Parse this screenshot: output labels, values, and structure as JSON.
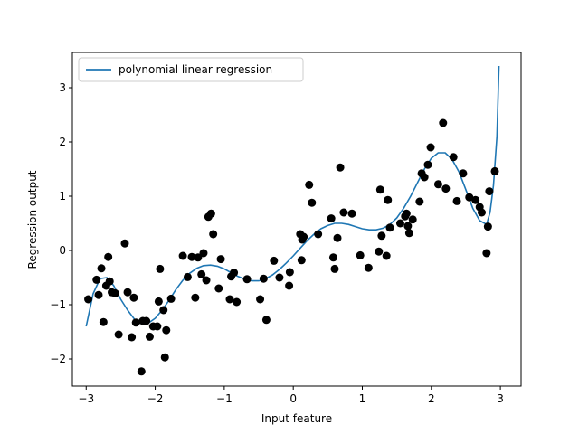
{
  "chart_data": {
    "type": "scatter",
    "xlabel": "Input feature",
    "ylabel": "Regression output",
    "xlim": [
      -3.2,
      3.3
    ],
    "ylim": [
      -2.5,
      3.65
    ],
    "x_ticks": [
      -3,
      -2,
      -1,
      0,
      1,
      2,
      3
    ],
    "y_ticks": [
      -2,
      -1,
      0,
      1,
      2,
      3
    ],
    "x_tick_labels": [
      "−3",
      "−2",
      "−1",
      "0",
      "1",
      "2",
      "3"
    ],
    "y_tick_labels": [
      "−2",
      "−1",
      "0",
      "1",
      "2",
      "3"
    ],
    "legend": {
      "placement": "top-left",
      "entries": [
        "polynomial linear regression"
      ]
    },
    "grid": false,
    "series": [
      {
        "name": "polynomial linear regression",
        "kind": "line",
        "color": "#1f77b4",
        "x": [
          -3.0,
          -2.9,
          -2.8,
          -2.7,
          -2.6,
          -2.5,
          -2.4,
          -2.3,
          -2.2,
          -2.1,
          -2.0,
          -1.9,
          -1.8,
          -1.7,
          -1.6,
          -1.5,
          -1.4,
          -1.3,
          -1.2,
          -1.1,
          -1.0,
          -0.9,
          -0.8,
          -0.7,
          -0.6,
          -0.5,
          -0.4,
          -0.3,
          -0.2,
          -0.1,
          0.0,
          0.1,
          0.2,
          0.3,
          0.4,
          0.5,
          0.6,
          0.7,
          0.8,
          0.9,
          1.0,
          1.1,
          1.2,
          1.3,
          1.4,
          1.5,
          1.6,
          1.7,
          1.8,
          1.9,
          2.0,
          2.1,
          2.2,
          2.3,
          2.4,
          2.5,
          2.6,
          2.7,
          2.8,
          2.85,
          2.9,
          2.95,
          2.98
        ],
        "y": [
          -1.4,
          -0.8,
          -0.52,
          -0.5,
          -0.65,
          -0.9,
          -1.1,
          -1.27,
          -1.35,
          -1.34,
          -1.25,
          -1.1,
          -0.92,
          -0.72,
          -0.55,
          -0.42,
          -0.33,
          -0.28,
          -0.27,
          -0.29,
          -0.34,
          -0.41,
          -0.48,
          -0.53,
          -0.56,
          -0.56,
          -0.52,
          -0.45,
          -0.35,
          -0.23,
          -0.1,
          0.04,
          0.18,
          0.3,
          0.4,
          0.46,
          0.5,
          0.5,
          0.48,
          0.44,
          0.4,
          0.38,
          0.38,
          0.41,
          0.48,
          0.6,
          0.78,
          1.0,
          1.25,
          1.5,
          1.7,
          1.8,
          1.8,
          1.68,
          1.45,
          1.12,
          0.78,
          0.55,
          0.48,
          0.7,
          1.2,
          2.1,
          3.4
        ]
      },
      {
        "kind": "scatter",
        "color": "#000000",
        "x": [
          -2.97,
          -2.85,
          -2.82,
          -2.78,
          -2.75,
          -2.71,
          -2.68,
          -2.66,
          -2.63,
          -2.58,
          -2.53,
          -2.44,
          -2.4,
          -2.34,
          -2.31,
          -2.28,
          -2.2,
          -2.18,
          -2.13,
          -2.08,
          -2.03,
          -1.97,
          -1.95,
          -1.93,
          -1.88,
          -1.86,
          -1.84,
          -1.77,
          -1.6,
          -1.53,
          -1.47,
          -1.42,
          -1.38,
          -1.33,
          -1.3,
          -1.26,
          -1.23,
          -1.19,
          -1.16,
          -1.08,
          -1.05,
          -0.92,
          -0.9,
          -0.86,
          -0.82,
          -0.67,
          -0.48,
          -0.43,
          -0.39,
          -0.28,
          -0.2,
          -0.06,
          -0.05,
          0.1,
          0.12,
          0.13,
          0.15,
          0.23,
          0.27,
          0.36,
          0.55,
          0.58,
          0.6,
          0.64,
          0.68,
          0.73,
          0.85,
          0.97,
          1.09,
          1.24,
          1.26,
          1.28,
          1.35,
          1.37,
          1.4,
          1.55,
          1.62,
          1.64,
          1.66,
          1.68,
          1.73,
          1.83,
          1.86,
          1.9,
          1.95,
          1.99,
          2.1,
          2.17,
          2.21,
          2.32,
          2.37,
          2.46,
          2.55,
          2.64,
          2.7,
          2.73,
          2.8,
          2.82,
          2.84,
          2.92
        ],
        "y": [
          -0.9,
          -0.54,
          -0.82,
          -0.33,
          -1.32,
          -0.65,
          -0.12,
          -0.57,
          -0.77,
          -0.79,
          -1.55,
          0.13,
          -0.77,
          -1.6,
          -0.87,
          -1.33,
          -2.23,
          -1.3,
          -1.3,
          -1.59,
          -1.4,
          -1.4,
          -0.94,
          -0.34,
          -1.1,
          -1.97,
          -1.47,
          -0.89,
          -0.1,
          -0.49,
          -0.12,
          -0.87,
          -0.13,
          -0.44,
          -0.05,
          -0.55,
          0.62,
          0.68,
          0.3,
          -0.7,
          -0.16,
          -0.9,
          -0.48,
          -0.41,
          -0.95,
          -0.53,
          -0.9,
          -0.52,
          -1.28,
          -0.19,
          -0.5,
          -0.65,
          -0.4,
          0.3,
          -0.18,
          0.2,
          0.25,
          1.21,
          0.88,
          0.3,
          0.59,
          -0.13,
          -0.34,
          0.23,
          1.53,
          0.7,
          0.68,
          -0.09,
          -0.32,
          -0.02,
          1.12,
          0.27,
          -0.1,
          0.93,
          0.42,
          0.5,
          0.63,
          0.68,
          0.45,
          0.32,
          0.57,
          0.9,
          1.42,
          1.35,
          1.58,
          1.9,
          1.22,
          2.35,
          1.14,
          1.72,
          0.91,
          1.42,
          0.98,
          0.93,
          0.8,
          0.7,
          -0.05,
          0.44,
          1.09,
          1.46
        ]
      }
    ]
  }
}
